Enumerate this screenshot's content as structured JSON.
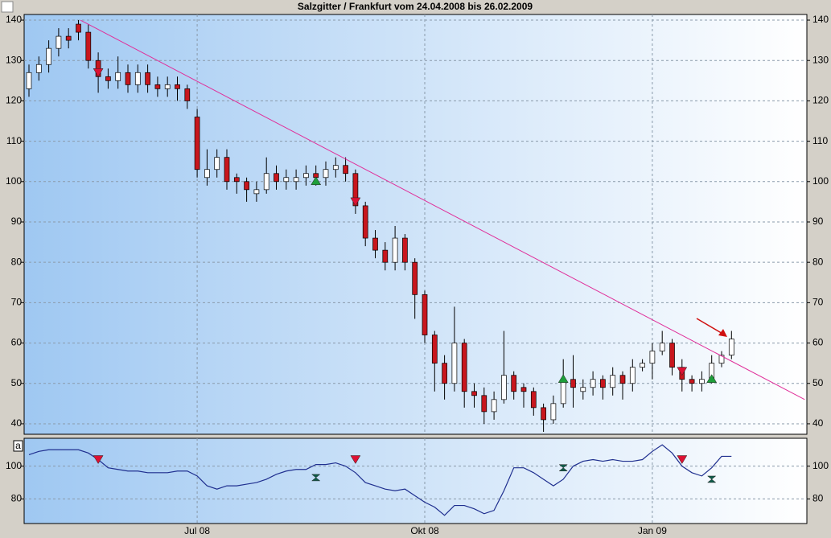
{
  "chart_data": [
    {
      "type": "candlestick",
      "title": "Salzgitter / Frankfurt vom 24.04.2008 bis 26.02.2009",
      "categories": [
        null,
        null,
        null,
        null,
        null,
        null,
        null,
        null,
        null,
        null,
        null,
        null,
        null,
        null,
        null,
        null,
        null,
        "Jul 08",
        null,
        null,
        null,
        null,
        null,
        null,
        null,
        null,
        null,
        null,
        null,
        null,
        null,
        null,
        null,
        null,
        null,
        null,
        null,
        null,
        null,
        null,
        "Okt 08",
        null,
        null,
        null,
        null,
        null,
        null,
        null,
        null,
        null,
        null,
        null,
        null,
        null,
        null,
        null,
        null,
        null,
        null,
        null,
        null,
        null,
        null,
        "Jan 09",
        null,
        null,
        null,
        null,
        null,
        null,
        null,
        null
      ],
      "open": [
        123,
        127,
        129,
        133,
        136,
        139,
        137,
        130,
        126,
        125,
        127,
        124,
        127,
        124,
        123,
        124,
        123,
        116,
        101,
        103,
        106,
        101,
        100,
        97,
        98,
        102,
        100,
        100,
        101,
        102,
        101,
        103,
        104,
        102,
        94,
        86,
        83,
        80,
        86,
        80,
        72,
        62,
        55,
        50,
        60,
        48,
        47,
        43,
        46,
        52,
        49,
        48,
        44,
        41,
        45,
        51,
        48,
        49,
        51,
        49,
        52,
        50,
        54,
        55,
        58,
        60,
        54,
        51,
        50,
        51,
        55,
        57
      ],
      "high": [
        129,
        131,
        135,
        138,
        138,
        140,
        139,
        132,
        128,
        131,
        129,
        129,
        129,
        126,
        126,
        126,
        124,
        118,
        108,
        108,
        108,
        102,
        101,
        100,
        106,
        104,
        103,
        103,
        104,
        104,
        105,
        106,
        106,
        103,
        95,
        88,
        85,
        89,
        87,
        81,
        73,
        63,
        57,
        69,
        61,
        50,
        49,
        48,
        63,
        53,
        50,
        49,
        45,
        47,
        56,
        57,
        51,
        53,
        52,
        54,
        53,
        56,
        56,
        60,
        63,
        61,
        56,
        52,
        53,
        57,
        58,
        63
      ],
      "low": [
        121,
        125,
        127,
        131,
        133,
        135,
        128,
        122,
        123,
        123,
        122,
        122,
        122,
        121,
        121,
        120,
        118,
        101,
        99,
        101,
        98,
        97,
        95,
        95,
        97,
        98,
        98,
        98,
        99,
        99,
        99,
        101,
        100,
        92,
        84,
        81,
        78,
        78,
        78,
        66,
        60,
        48,
        46,
        48,
        44,
        44,
        40,
        41,
        45,
        46,
        44,
        42,
        38,
        40,
        44,
        44,
        46,
        47,
        46,
        47,
        46,
        48,
        53,
        51,
        57,
        52,
        48,
        48,
        48,
        50,
        54,
        56
      ],
      "close": [
        127,
        129,
        133,
        136,
        135,
        137,
        130,
        126,
        125,
        127,
        124,
        127,
        124,
        123,
        124,
        123,
        120,
        103,
        103,
        106,
        100,
        100,
        98,
        98,
        102,
        100,
        101,
        101,
        102,
        101,
        103,
        104,
        102,
        94,
        86,
        83,
        80,
        86,
        80,
        72,
        62,
        55,
        50,
        60,
        48,
        47,
        43,
        46,
        52,
        48,
        48,
        44,
        41,
        45,
        51,
        49,
        49,
        51,
        49,
        52,
        50,
        54,
        55,
        58,
        60,
        54,
        51,
        50,
        51,
        55,
        57,
        61
      ],
      "up_color": "#ffffff",
      "down_color": "#c8161d",
      "ylim": [
        37.4,
        141.4
      ],
      "yticks": [
        40,
        50,
        60,
        70,
        80,
        90,
        100,
        110,
        120,
        130,
        140
      ],
      "grid": true,
      "trendline": {
        "color": "#e0309a",
        "x": [
          5.2,
          78.4
        ],
        "values": [
          140,
          46
        ]
      },
      "buy_signals": {
        "color": "#1e9e3a",
        "x": [
          29,
          54,
          69
        ],
        "values": [
          100,
          51,
          51
        ]
      },
      "sell_signals": {
        "color": "#dd1133",
        "x": [
          7,
          33,
          66
        ],
        "values": [
          127,
          95,
          53
        ]
      }
    },
    {
      "type": "line",
      "label": "a",
      "values": [
        107,
        109,
        110,
        110,
        110,
        110,
        108,
        104,
        99,
        98,
        97,
        97,
        96,
        96,
        96,
        97,
        97,
        94,
        88,
        86,
        88,
        88,
        89,
        90,
        92,
        95,
        97,
        98,
        98,
        101,
        101,
        102,
        100,
        96,
        90,
        88,
        86,
        85,
        86,
        82,
        78,
        75,
        70,
        76,
        76,
        74,
        71,
        73,
        85,
        99,
        99,
        96,
        92,
        88,
        92,
        100,
        103,
        104,
        103,
        104,
        103,
        103,
        104,
        109,
        113,
        108,
        100,
        96,
        94,
        99,
        106,
        106
      ],
      "color": "#1f2f8f",
      "ylim": [
        65,
        117
      ],
      "yticks": [
        80,
        100
      ],
      "grid": true,
      "buy_signals": {
        "color": "#0f5c4a",
        "x": [
          29,
          54,
          69
        ],
        "values": [
          93,
          99,
          92
        ]
      },
      "sell_signals": {
        "color": "#dd1133",
        "x": [
          7,
          33,
          66
        ],
        "values": [
          104,
          104,
          104
        ]
      }
    }
  ]
}
